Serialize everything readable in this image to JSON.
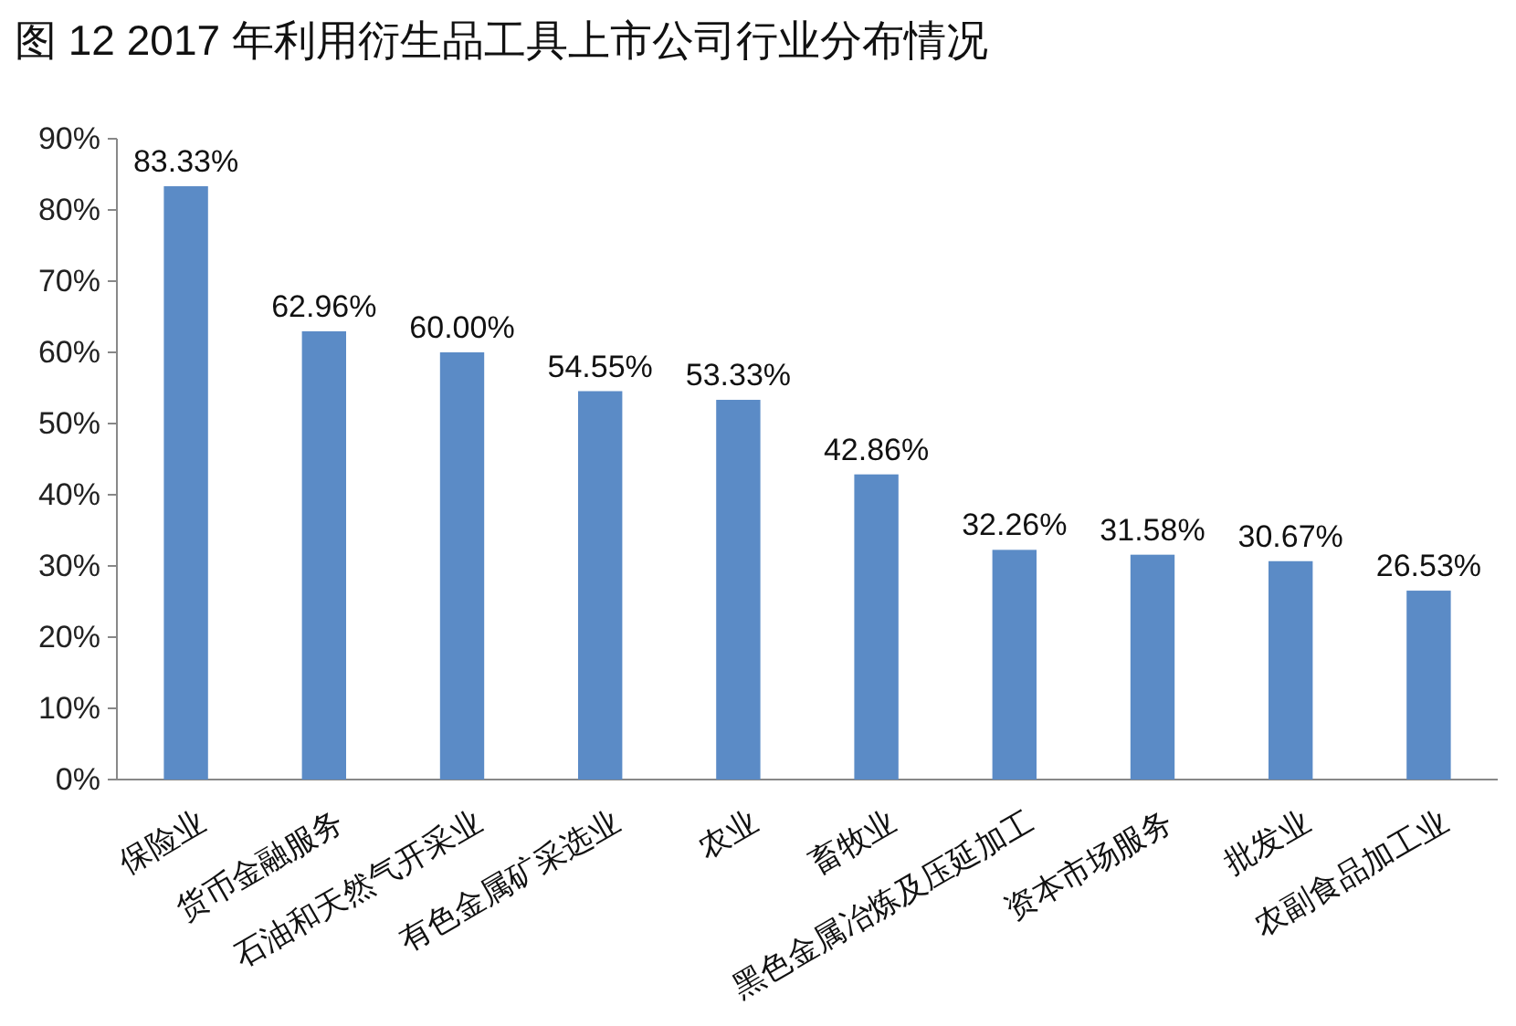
{
  "chart_data": {
    "type": "bar",
    "title": "图 12 2017 年利用衍生品工具上市公司行业分布情况",
    "categories": [
      "保险业",
      "货币金融服务",
      "石油和天然气开采业",
      "有色金属矿采选业",
      "农业",
      "畜牧业",
      "黑色金属冶炼及压延加工",
      "资本市场服务",
      "批发业",
      "农副食品加工业"
    ],
    "values": [
      83.33,
      62.96,
      60.0,
      54.55,
      53.33,
      42.86,
      32.26,
      31.58,
      30.67,
      26.53
    ],
    "value_labels": [
      "83.33%",
      "62.96%",
      "60.00%",
      "54.55%",
      "53.33%",
      "42.86%",
      "32.26%",
      "31.58%",
      "30.67%",
      "26.53%"
    ],
    "color": "#5b8bc6",
    "ylim": [
      0,
      90
    ],
    "yticks": [
      {
        "value": 0,
        "label": "0%"
      },
      {
        "value": 10,
        "label": "10%"
      },
      {
        "value": 20,
        "label": "20%"
      },
      {
        "value": 30,
        "label": "30%"
      },
      {
        "value": 40,
        "label": "40%"
      },
      {
        "value": 50,
        "label": "50%"
      },
      {
        "value": 60,
        "label": "60%"
      },
      {
        "value": 70,
        "label": "70%"
      },
      {
        "value": 80,
        "label": "80%"
      },
      {
        "value": 90,
        "label": "90%"
      }
    ],
    "grid": false
  }
}
